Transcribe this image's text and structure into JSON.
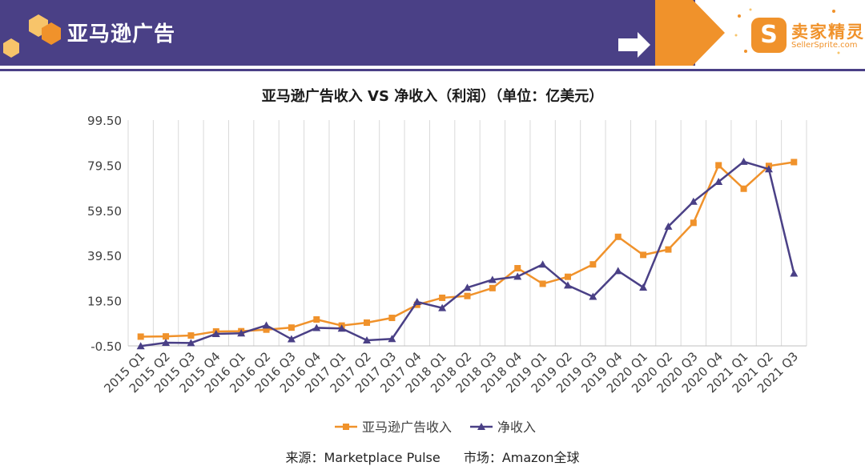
{
  "header": {
    "title": "亚马逊广告"
  },
  "brand": {
    "name": "卖家精灵",
    "url": "SellerSprite.com",
    "icon_text": "S"
  },
  "source": {
    "label": "来源：Marketplace Pulse",
    "market": "市场：Amazon全球"
  },
  "colors": {
    "header_band": "#4a4086",
    "accent": "#f0922b",
    "series_ad": "#f0922b",
    "series_net": "#4a4086"
  },
  "chart_data": {
    "type": "line",
    "title": "亚马逊广告收入 VS 净收入（利润）（单位：亿美元）",
    "xlabel": "",
    "ylabel": "",
    "ylim": [
      -0.5,
      99.5
    ],
    "yticks": [
      "99.50",
      "79.50",
      "59.50",
      "39.50",
      "19.50",
      "-0.50"
    ],
    "grid": "vertical",
    "legend_position": "bottom",
    "categories": [
      "2015 Q1",
      "2015 Q2",
      "2015 Q3",
      "2015 Q4",
      "2016 Q1",
      "2016 Q2",
      "2016 Q3",
      "2016 Q4",
      "2017 Q1",
      "2017 Q2",
      "2017 Q3",
      "2017 Q4",
      "2018 Q1",
      "2018 Q2",
      "2018 Q3",
      "2018 Q4",
      "2019 Q1",
      "2019 Q2",
      "2019 Q3",
      "2019 Q4",
      "2020 Q1",
      "2020 Q2",
      "2020 Q3",
      "2020 Q4",
      "2021 Q1",
      "2021 Q2",
      "2021 Q3"
    ],
    "series": [
      {
        "name": "亚马逊广告收入",
        "marker": "square",
        "color": "#f0922b",
        "values": [
          3.6,
          3.7,
          4.1,
          5.9,
          6.0,
          6.7,
          7.6,
          11.2,
          8.5,
          9.8,
          11.9,
          17.7,
          20.8,
          21.6,
          25.1,
          33.9,
          27.0,
          30.1,
          35.6,
          47.8,
          39.8,
          42.2,
          54.0,
          79.5,
          69.1,
          79.2,
          80.9
        ]
      },
      {
        "name": "净收入",
        "marker": "triangle",
        "color": "#4a4086",
        "values": [
          -0.6,
          0.9,
          0.8,
          4.8,
          5.1,
          8.6,
          2.5,
          7.5,
          7.2,
          2.0,
          2.6,
          19.0,
          16.3,
          25.3,
          28.8,
          30.2,
          35.6,
          26.3,
          21.3,
          32.7,
          25.4,
          52.4,
          63.4,
          72.2,
          81.1,
          77.8,
          31.6
        ]
      }
    ]
  }
}
